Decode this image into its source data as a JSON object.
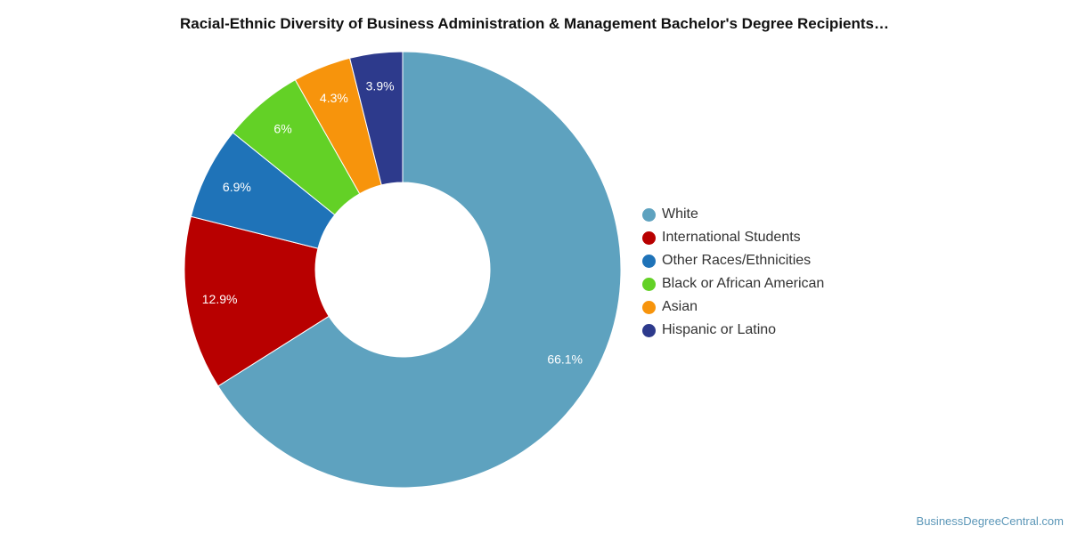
{
  "chart_data": {
    "type": "pie",
    "title": "Racial-Ethnic Diversity of Business Administration & Management Bachelor's Degree Recipients…",
    "donut": true,
    "legend_position": "right",
    "slices": [
      {
        "label": "White",
        "value": 66.1,
        "display": "66.1%",
        "color": "#5ea2bf"
      },
      {
        "label": "International Students",
        "value": 12.9,
        "display": "12.9%",
        "color": "#b80000"
      },
      {
        "label": "Other Races/Ethnicities",
        "value": 6.9,
        "display": "6.9%",
        "color": "#1f73b8"
      },
      {
        "label": "Black or African American",
        "value": 6.0,
        "display": "6%",
        "color": "#63d126"
      },
      {
        "label": "Asian",
        "value": 4.3,
        "display": "4.3%",
        "color": "#f7940c"
      },
      {
        "label": "Hispanic or Latino",
        "value": 3.9,
        "display": "3.9%",
        "color": "#2d3a8c"
      }
    ]
  },
  "watermark": "BusinessDegreeCentral.com"
}
